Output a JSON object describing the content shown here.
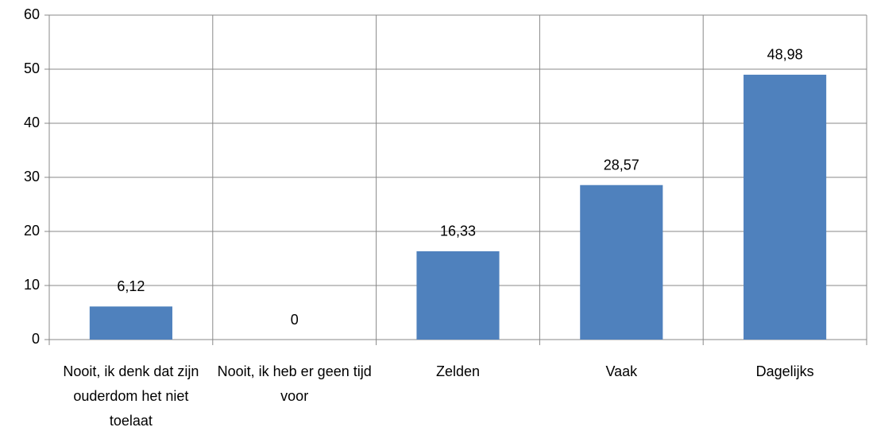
{
  "chart_data": {
    "type": "bar",
    "categories": [
      "Nooit, ik denk dat zijn ouderdom het niet toelaat",
      "Nooit, ik heb er geen tijd voor",
      "Zelden",
      "Vaak",
      "Dagelijks"
    ],
    "values": [
      6.12,
      0,
      16.33,
      28.57,
      48.98
    ],
    "value_labels": [
      "6,12",
      "0",
      "16,33",
      "28,57",
      "48,98"
    ],
    "color": "#4f81bd",
    "ylim": [
      0,
      60
    ],
    "yticks": [
      0,
      10,
      20,
      30,
      40,
      50,
      60
    ],
    "grid": true
  }
}
